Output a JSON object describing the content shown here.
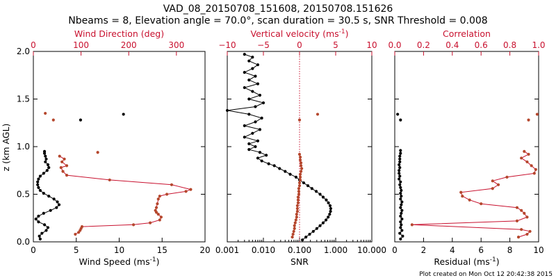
{
  "colors": {
    "black": "#000000",
    "red": "#c8102e",
    "brown": "#b5472d"
  },
  "title": {
    "line1": "VAD_08_20150708_151608, 20150708.151626",
    "line2": "Nbeams = 8, Elevation angle = 70.0°, scan duration = 30.5 s, SNR Threshold = 0.008"
  },
  "y_axis": {
    "label": "z (km AGL)",
    "ylim": [
      0.0,
      2.0
    ],
    "ticks": [
      0.0,
      0.5,
      1.0,
      1.5,
      2.0
    ],
    "tick_labels": [
      "0.0",
      "0.5",
      "1.0",
      "1.5",
      "2.0"
    ]
  },
  "footer": "Plot created on Mon Oct 12 20:42:38 2015",
  "chart_data": [
    {
      "type": "line",
      "name": "wind",
      "bottom_axis": {
        "label": "Wind Speed",
        "label_unit": "(ms",
        "label_sup": "-1",
        "label_close": ")",
        "xlim": [
          0,
          20
        ],
        "ticks": [
          0,
          5,
          10,
          15,
          20
        ],
        "tick_labels": [
          "0",
          "5",
          "10",
          "15",
          "20"
        ]
      },
      "top_axis": {
        "label": "Wind Direction (deg)",
        "xlim": [
          0,
          360
        ],
        "ticks": [
          0,
          100,
          200,
          300
        ],
        "tick_labels": [
          "0",
          "100",
          "200",
          "300"
        ]
      },
      "series": [
        {
          "name": "Wind Speed",
          "axis": "bottom",
          "color": "#000000",
          "points": [
            [
              0.8,
              0.03
            ],
            [
              0.7,
              0.06
            ],
            [
              1.0,
              0.09
            ],
            [
              1.5,
              0.12
            ],
            [
              1.7,
              0.15
            ],
            [
              1.3,
              0.18
            ],
            [
              0.6,
              0.21
            ],
            [
              0.3,
              0.24
            ],
            [
              0.6,
              0.27
            ],
            [
              1.2,
              0.3
            ],
            [
              2.0,
              0.33
            ],
            [
              2.7,
              0.36
            ],
            [
              3.0,
              0.39
            ],
            [
              2.8,
              0.42
            ],
            [
              2.4,
              0.45
            ],
            [
              1.8,
              0.48
            ],
            [
              1.2,
              0.51
            ],
            [
              0.8,
              0.54
            ],
            [
              0.6,
              0.57
            ],
            [
              0.5,
              0.6
            ],
            [
              0.5,
              0.63
            ],
            [
              0.6,
              0.66
            ],
            [
              0.8,
              0.69
            ],
            [
              1.2,
              0.72
            ],
            [
              1.6,
              0.75
            ],
            [
              1.8,
              0.78
            ],
            [
              1.7,
              0.81
            ],
            [
              1.4,
              0.84
            ],
            [
              1.5,
              0.87
            ],
            [
              1.4,
              0.9
            ],
            [
              1.3,
              0.93
            ],
            [
              1.3,
              0.95
            ]
          ],
          "isolated": [
            [
              5.5,
              1.28
            ],
            [
              10.5,
              1.34
            ]
          ]
        },
        {
          "name": "Wind Direction",
          "axis": "top",
          "color": "#b5472d",
          "points": [
            [
              88,
              0.08
            ],
            [
              95,
              0.1
            ],
            [
              98,
              0.12
            ],
            [
              100,
              0.14
            ],
            [
              102,
              0.16
            ],
            [
              210,
              0.18
            ],
            [
              245,
              0.2
            ],
            [
              265,
              0.23
            ],
            [
              268,
              0.26
            ],
            [
              262,
              0.29
            ],
            [
              258,
              0.31
            ],
            [
              256,
              0.33
            ],
            [
              258,
              0.36
            ],
            [
              260,
              0.4
            ],
            [
              262,
              0.45
            ],
            [
              265,
              0.48
            ],
            [
              280,
              0.5
            ],
            [
              320,
              0.53
            ],
            [
              330,
              0.55
            ],
            [
              290,
              0.6
            ],
            [
              160,
              0.65
            ],
            [
              70,
              0.7
            ],
            [
              62,
              0.74
            ],
            [
              58,
              0.78
            ],
            [
              70,
              0.8
            ],
            [
              60,
              0.84
            ],
            [
              65,
              0.87
            ],
            [
              55,
              0.9
            ]
          ],
          "isolated": [
            [
              135,
              0.94
            ],
            [
              25,
              1.35
            ],
            [
              42,
              1.28
            ]
          ]
        }
      ]
    },
    {
      "type": "line",
      "name": "vertical-velocity-snr",
      "bottom_axis": {
        "label": "SNR",
        "scale": "log",
        "xlim": [
          0.001,
          10.0
        ],
        "ticks": [
          0.001,
          0.01,
          0.1,
          1.0,
          10.0
        ],
        "tick_labels": [
          "0.001",
          "0.010",
          "0.100",
          "1.000",
          "10.000"
        ]
      },
      "top_axis": {
        "label": "Vertical velocity (ms",
        "label_sup": "-1",
        "label_close": ")",
        "xlim": [
          -10,
          10
        ],
        "ticks": [
          -10,
          -5,
          0,
          5,
          10
        ],
        "tick_labels": [
          "−10",
          "−5",
          "0",
          "5",
          "10"
        ]
      },
      "reference_line": {
        "axis": "top",
        "x": 0
      },
      "series": [
        {
          "name": "SNR",
          "axis": "bottom",
          "color": "#000000",
          "points": [
            [
              0.12,
              0.02
            ],
            [
              0.15,
              0.05
            ],
            [
              0.19,
              0.08
            ],
            [
              0.24,
              0.11
            ],
            [
              0.3,
              0.14
            ],
            [
              0.37,
              0.17
            ],
            [
              0.45,
              0.2
            ],
            [
              0.54,
              0.23
            ],
            [
              0.62,
              0.26
            ],
            [
              0.68,
              0.29
            ],
            [
              0.72,
              0.32
            ],
            [
              0.73,
              0.35
            ],
            [
              0.7,
              0.38
            ],
            [
              0.63,
              0.41
            ],
            [
              0.55,
              0.44
            ],
            [
              0.45,
              0.47
            ],
            [
              0.37,
              0.5
            ],
            [
              0.29,
              0.53
            ],
            [
              0.22,
              0.56
            ],
            [
              0.17,
              0.59
            ],
            [
              0.13,
              0.62
            ],
            [
              0.1,
              0.65
            ],
            [
              0.08,
              0.68
            ],
            [
              0.055,
              0.71
            ],
            [
              0.04,
              0.74
            ],
            [
              0.028,
              0.77
            ],
            [
              0.02,
              0.8
            ],
            [
              0.014,
              0.82
            ],
            [
              0.009,
              0.85
            ],
            [
              0.007,
              0.88
            ],
            [
              0.012,
              0.91
            ],
            [
              0.008,
              0.94
            ],
            [
              0.004,
              0.97
            ],
            [
              0.006,
              1.0
            ],
            [
              0.004,
              1.03
            ],
            [
              0.007,
              1.06
            ],
            [
              0.003,
              1.1
            ],
            [
              0.005,
              1.14
            ],
            [
              0.008,
              1.18
            ],
            [
              0.003,
              1.22
            ],
            [
              0.006,
              1.26
            ],
            [
              0.009,
              1.3
            ],
            [
              0.004,
              1.34
            ],
            [
              0.001,
              1.38
            ],
            [
              0.006,
              1.42
            ],
            [
              0.01,
              1.46
            ],
            [
              0.004,
              1.5
            ],
            [
              0.008,
              1.54
            ],
            [
              0.005,
              1.58
            ],
            [
              0.003,
              1.62
            ],
            [
              0.007,
              1.66
            ],
            [
              0.004,
              1.7
            ],
            [
              0.006,
              1.74
            ],
            [
              0.003,
              1.78
            ],
            [
              0.005,
              1.82
            ],
            [
              0.007,
              1.86
            ],
            [
              0.004,
              1.9
            ],
            [
              0.005,
              1.94
            ],
            [
              0.003,
              1.97
            ]
          ]
        },
        {
          "name": "Vertical velocity",
          "axis": "top",
          "color": "#b5472d",
          "points": [
            [
              -1.0,
              0.05
            ],
            [
              -0.9,
              0.08
            ],
            [
              -0.8,
              0.11
            ],
            [
              -0.7,
              0.14
            ],
            [
              -0.7,
              0.17
            ],
            [
              -0.6,
              0.2
            ],
            [
              -0.5,
              0.23
            ],
            [
              -0.4,
              0.26
            ],
            [
              -0.4,
              0.29
            ],
            [
              -0.3,
              0.32
            ],
            [
              -0.3,
              0.35
            ],
            [
              -0.3,
              0.38
            ],
            [
              -0.2,
              0.41
            ],
            [
              -0.2,
              0.44
            ],
            [
              -0.2,
              0.47
            ],
            [
              -0.1,
              0.5
            ],
            [
              -0.1,
              0.53
            ],
            [
              -0.1,
              0.56
            ],
            [
              0.0,
              0.59
            ],
            [
              0.0,
              0.62
            ],
            [
              0.1,
              0.65
            ],
            [
              0.1,
              0.68
            ],
            [
              0.1,
              0.71
            ],
            [
              0.2,
              0.74
            ],
            [
              0.3,
              0.77
            ],
            [
              0.2,
              0.8
            ],
            [
              0.2,
              0.83
            ],
            [
              0.1,
              0.86
            ],
            [
              0.1,
              0.89
            ],
            [
              0.0,
              0.92
            ]
          ],
          "isolated": [
            [
              0.0,
              1.28
            ],
            [
              2.5,
              1.34
            ]
          ]
        }
      ]
    },
    {
      "type": "line",
      "name": "residual-correlation",
      "bottom_axis": {
        "label": "Residual",
        "label_unit": "(ms",
        "label_sup": "-1",
        "label_close": ")",
        "xlim": [
          0,
          10
        ],
        "ticks": [
          0,
          2,
          4,
          6,
          8,
          10
        ],
        "tick_labels": [
          "0",
          "2",
          "4",
          "6",
          "8",
          "10"
        ]
      },
      "top_axis": {
        "label": "Correlation",
        "xlim": [
          0.0,
          1.0
        ],
        "ticks": [
          0.0,
          0.2,
          0.4,
          0.6,
          0.8,
          1.0
        ],
        "tick_labels": [
          "0.0",
          "0.2",
          "0.4",
          "0.6",
          "0.8",
          "1.0"
        ]
      },
      "series": [
        {
          "name": "Residual",
          "axis": "bottom",
          "color": "#000000",
          "points": [
            [
              0.4,
              0.03
            ],
            [
              0.55,
              0.06
            ],
            [
              0.35,
              0.09
            ],
            [
              0.5,
              0.12
            ],
            [
              0.4,
              0.15
            ],
            [
              0.45,
              0.18
            ],
            [
              0.4,
              0.21
            ],
            [
              0.5,
              0.24
            ],
            [
              0.4,
              0.27
            ],
            [
              0.45,
              0.3
            ],
            [
              0.5,
              0.33
            ],
            [
              0.4,
              0.36
            ],
            [
              0.45,
              0.39
            ],
            [
              0.5,
              0.42
            ],
            [
              0.4,
              0.45
            ],
            [
              0.45,
              0.48
            ],
            [
              0.4,
              0.51
            ],
            [
              0.45,
              0.54
            ],
            [
              0.4,
              0.57
            ],
            [
              0.35,
              0.6
            ],
            [
              0.4,
              0.63
            ],
            [
              0.3,
              0.66
            ],
            [
              0.35,
              0.69
            ],
            [
              0.3,
              0.72
            ],
            [
              0.3,
              0.75
            ],
            [
              0.35,
              0.78
            ],
            [
              0.3,
              0.81
            ],
            [
              0.35,
              0.84
            ],
            [
              0.35,
              0.87
            ],
            [
              0.35,
              0.9
            ],
            [
              0.4,
              0.93
            ],
            [
              0.4,
              0.96
            ]
          ],
          "isolated": [
            [
              0.4,
              1.28
            ],
            [
              0.2,
              1.34
            ]
          ]
        },
        {
          "name": "Correlation",
          "axis": "top",
          "color": "#b5472d",
          "points": [
            [
              0.86,
              0.05
            ],
            [
              0.92,
              0.08
            ],
            [
              0.94,
              0.11
            ],
            [
              0.88,
              0.13
            ],
            [
              0.12,
              0.18
            ],
            [
              0.85,
              0.22
            ],
            [
              0.92,
              0.26
            ],
            [
              0.9,
              0.3
            ],
            [
              0.88,
              0.33
            ],
            [
              0.85,
              0.36
            ],
            [
              0.6,
              0.4
            ],
            [
              0.52,
              0.44
            ],
            [
              0.47,
              0.48
            ],
            [
              0.46,
              0.52
            ],
            [
              0.68,
              0.56
            ],
            [
              0.72,
              0.6
            ],
            [
              0.68,
              0.64
            ],
            [
              0.78,
              0.68
            ],
            [
              0.97,
              0.72
            ],
            [
              0.98,
              0.76
            ],
            [
              0.95,
              0.8
            ],
            [
              0.92,
              0.84
            ],
            [
              0.88,
              0.88
            ],
            [
              0.93,
              0.92
            ],
            [
              0.9,
              0.95
            ]
          ],
          "isolated": [
            [
              0.93,
              1.28
            ],
            [
              0.99,
              1.34
            ]
          ]
        }
      ]
    }
  ]
}
